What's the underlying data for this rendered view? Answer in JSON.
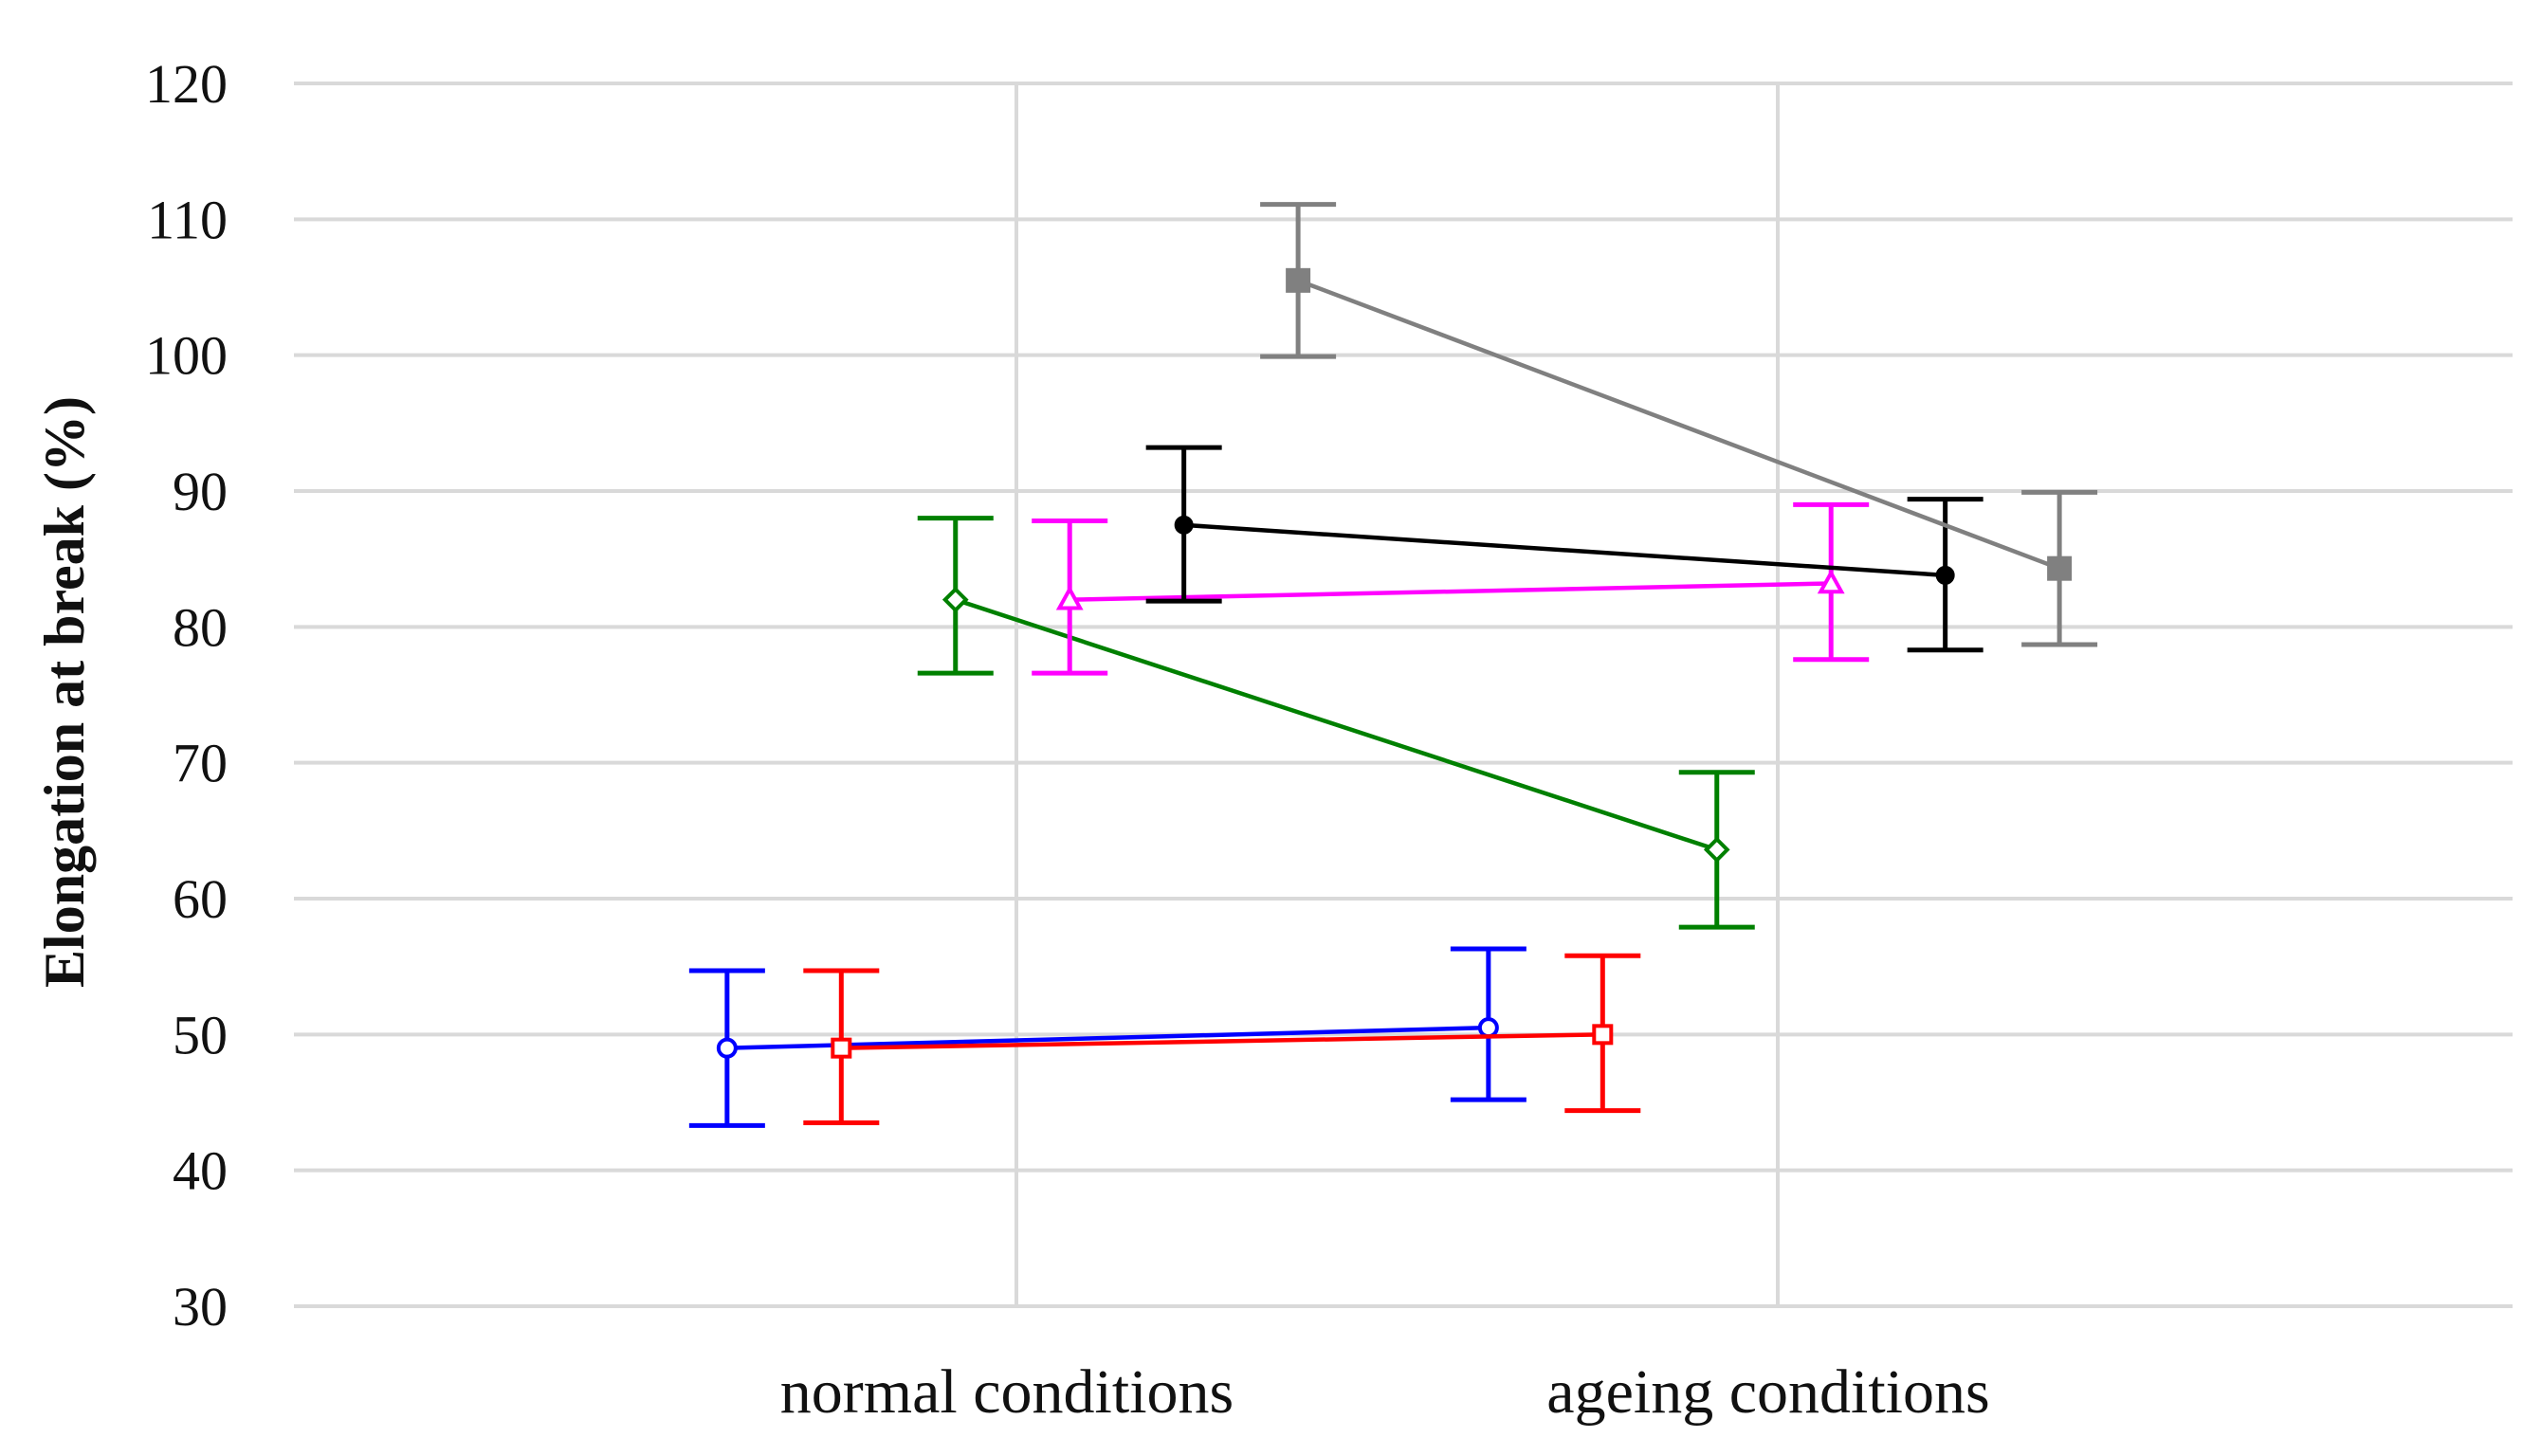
{
  "chart_data": {
    "type": "line",
    "title": "",
    "xlabel": "",
    "ylabel": "Elongation at break (%)",
    "ylim": [
      30,
      120
    ],
    "yticks": [
      30,
      40,
      50,
      60,
      70,
      80,
      90,
      100,
      110,
      120
    ],
    "ytick_labels": [
      "30",
      "40",
      "50",
      "60",
      "70",
      "80",
      "90",
      "100",
      "110",
      "120"
    ],
    "categories": [
      "normal conditions",
      "ageing conditions"
    ],
    "grid": true,
    "legend": "none",
    "series": [
      {
        "name": "blue series",
        "color": "#0000ff",
        "marker": "circle-open",
        "offset": -0.38,
        "values": [
          49,
          50.5
        ],
        "err_low": [
          43.3,
          45.2
        ],
        "err_high": [
          54.7,
          56.3
        ]
      },
      {
        "name": "red series",
        "color": "#ff0000",
        "marker": "square-open",
        "offset": -0.23,
        "values": [
          49,
          50
        ],
        "err_low": [
          43.5,
          44.4
        ],
        "err_high": [
          54.7,
          55.8
        ]
      },
      {
        "name": "green series",
        "color": "#008000",
        "marker": "diamond-open",
        "offset": -0.08,
        "values": [
          82,
          63.6
        ],
        "err_low": [
          76.6,
          57.9
        ],
        "err_high": [
          88,
          69.3
        ]
      },
      {
        "name": "magenta series",
        "color": "#ff00ff",
        "marker": "triangle-open",
        "offset": 0.07,
        "values": [
          82,
          83.2
        ],
        "err_low": [
          76.6,
          77.6
        ],
        "err_high": [
          87.8,
          89
        ]
      },
      {
        "name": "black series",
        "color": "#000000",
        "marker": "circle-filled",
        "offset": 0.22,
        "values": [
          87.5,
          83.8
        ],
        "err_low": [
          81.9,
          78.3
        ],
        "err_high": [
          93.2,
          89.4
        ]
      },
      {
        "name": "gray series",
        "color": "#808080",
        "marker": "square-filled",
        "offset": 0.37,
        "values": [
          105.5,
          84.3
        ],
        "err_low": [
          99.9,
          78.7
        ],
        "err_high": [
          111.1,
          89.9
        ]
      }
    ]
  }
}
